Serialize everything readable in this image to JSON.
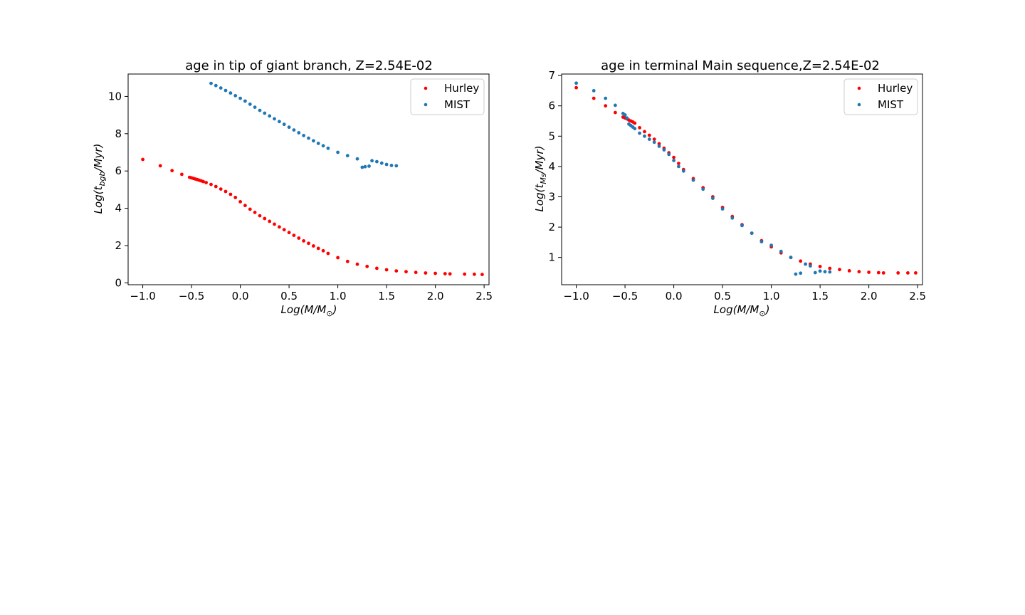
{
  "figure": {
    "background": "#ffffff"
  },
  "chart_data": [
    {
      "type": "scatter",
      "title": "age in tip of giant branch, Z=2.54E-02",
      "xlabel": {
        "main": "Log(M/M",
        "sub": "⊙",
        "close": ")"
      },
      "ylabel": {
        "main": "Log(t",
        "sub": "bgb",
        "rest": "/Myr)"
      },
      "xlim": [
        -1.15,
        2.55
      ],
      "ylim": [
        -0.1,
        11.2
      ],
      "xticks": [
        -1.0,
        -0.5,
        0.0,
        0.5,
        1.0,
        1.5,
        2.0,
        2.5
      ],
      "xtick_labels": [
        "−1.0",
        "−0.5",
        "0.0",
        "0.5",
        "1.0",
        "1.5",
        "2.0",
        "2.5"
      ],
      "yticks": [
        0,
        2,
        4,
        6,
        8,
        10
      ],
      "ytick_labels": [
        "0",
        "2",
        "4",
        "6",
        "8",
        "10"
      ],
      "legend": {
        "position": "top-right",
        "entries": [
          "Hurley",
          "MIST"
        ]
      },
      "series": [
        {
          "name": "Hurley",
          "color": "#ff0000",
          "points": [
            [
              -1.0,
              6.62
            ],
            [
              -0.82,
              6.28
            ],
            [
              -0.7,
              6.02
            ],
            [
              -0.6,
              5.82
            ],
            [
              -0.52,
              5.66
            ],
            [
              -0.5,
              5.63
            ],
            [
              -0.48,
              5.6
            ],
            [
              -0.46,
              5.57
            ],
            [
              -0.44,
              5.54
            ],
            [
              -0.42,
              5.5
            ],
            [
              -0.4,
              5.47
            ],
            [
              -0.38,
              5.43
            ],
            [
              -0.35,
              5.38
            ],
            [
              -0.3,
              5.28
            ],
            [
              -0.25,
              5.17
            ],
            [
              -0.2,
              5.03
            ],
            [
              -0.15,
              4.9
            ],
            [
              -0.1,
              4.75
            ],
            [
              -0.05,
              4.58
            ],
            [
              0.0,
              4.35
            ],
            [
              0.05,
              4.15
            ],
            [
              0.1,
              3.95
            ],
            [
              0.15,
              3.78
            ],
            [
              0.2,
              3.6
            ],
            [
              0.25,
              3.45
            ],
            [
              0.3,
              3.3
            ],
            [
              0.35,
              3.15
            ],
            [
              0.4,
              3.0
            ],
            [
              0.45,
              2.85
            ],
            [
              0.5,
              2.7
            ],
            [
              0.55,
              2.55
            ],
            [
              0.6,
              2.4
            ],
            [
              0.65,
              2.25
            ],
            [
              0.7,
              2.12
            ],
            [
              0.75,
              1.98
            ],
            [
              0.8,
              1.85
            ],
            [
              0.85,
              1.72
            ],
            [
              0.9,
              1.58
            ],
            [
              1.0,
              1.35
            ],
            [
              1.1,
              1.15
            ],
            [
              1.2,
              1.0
            ],
            [
              1.3,
              0.88
            ],
            [
              1.4,
              0.78
            ],
            [
              1.5,
              0.7
            ],
            [
              1.6,
              0.64
            ],
            [
              1.7,
              0.6
            ],
            [
              1.8,
              0.56
            ],
            [
              1.9,
              0.53
            ],
            [
              2.0,
              0.51
            ],
            [
              2.1,
              0.49
            ],
            [
              2.15,
              0.48
            ],
            [
              2.3,
              0.47
            ],
            [
              2.4,
              0.46
            ],
            [
              2.48,
              0.45
            ]
          ]
        },
        {
          "name": "MIST",
          "color": "#1f77b4",
          "points": [
            [
              -0.3,
              10.7
            ],
            [
              -0.25,
              10.58
            ],
            [
              -0.2,
              10.45
            ],
            [
              -0.15,
              10.32
            ],
            [
              -0.1,
              10.18
            ],
            [
              -0.05,
              10.04
            ],
            [
              0.0,
              9.9
            ],
            [
              0.05,
              9.75
            ],
            [
              0.1,
              9.58
            ],
            [
              0.15,
              9.42
            ],
            [
              0.2,
              9.25
            ],
            [
              0.25,
              9.1
            ],
            [
              0.3,
              8.95
            ],
            [
              0.35,
              8.8
            ],
            [
              0.4,
              8.65
            ],
            [
              0.45,
              8.5
            ],
            [
              0.5,
              8.35
            ],
            [
              0.55,
              8.2
            ],
            [
              0.6,
              8.05
            ],
            [
              0.65,
              7.9
            ],
            [
              0.7,
              7.76
            ],
            [
              0.75,
              7.62
            ],
            [
              0.8,
              7.48
            ],
            [
              0.85,
              7.35
            ],
            [
              0.9,
              7.22
            ],
            [
              1.0,
              7.0
            ],
            [
              1.1,
              6.82
            ],
            [
              1.2,
              6.65
            ],
            [
              1.25,
              6.2
            ],
            [
              1.28,
              6.23
            ],
            [
              1.32,
              6.26
            ],
            [
              1.35,
              6.55
            ],
            [
              1.4,
              6.5
            ],
            [
              1.45,
              6.42
            ],
            [
              1.5,
              6.35
            ],
            [
              1.55,
              6.3
            ],
            [
              1.6,
              6.28
            ]
          ]
        }
      ]
    },
    {
      "type": "scatter",
      "title": "age in terminal Main sequence,Z=2.54E-02",
      "xlabel": {
        "main": "Log(M/M",
        "sub": "⊙",
        "close": ")"
      },
      "ylabel": {
        "main": "Log(t",
        "sub": "Ms",
        "rest": "/Myr)"
      },
      "xlim": [
        -1.15,
        2.55
      ],
      "ylim": [
        0.1,
        7.05
      ],
      "xticks": [
        -1.0,
        -0.5,
        0.0,
        0.5,
        1.0,
        1.5,
        2.0,
        2.5
      ],
      "xtick_labels": [
        "−1.0",
        "−0.5",
        "0.0",
        "0.5",
        "1.0",
        "1.5",
        "2.0",
        "2.5"
      ],
      "yticks": [
        1,
        2,
        3,
        4,
        5,
        6,
        7
      ],
      "ytick_labels": [
        "1",
        "2",
        "3",
        "4",
        "5",
        "6",
        "7"
      ],
      "legend": {
        "position": "top-right",
        "entries": [
          "Hurley",
          "MIST"
        ]
      },
      "series": [
        {
          "name": "Hurley",
          "color": "#ff0000",
          "points": [
            [
              -1.0,
              6.6
            ],
            [
              -0.82,
              6.25
            ],
            [
              -0.7,
              6.0
            ],
            [
              -0.6,
              5.78
            ],
            [
              -0.52,
              5.63
            ],
            [
              -0.5,
              5.6
            ],
            [
              -0.48,
              5.57
            ],
            [
              -0.46,
              5.53
            ],
            [
              -0.44,
              5.5
            ],
            [
              -0.42,
              5.47
            ],
            [
              -0.4,
              5.43
            ],
            [
              -0.35,
              5.28
            ],
            [
              -0.3,
              5.15
            ],
            [
              -0.25,
              5.03
            ],
            [
              -0.2,
              4.9
            ],
            [
              -0.15,
              4.75
            ],
            [
              -0.1,
              4.6
            ],
            [
              -0.05,
              4.45
            ],
            [
              0.0,
              4.3
            ],
            [
              0.05,
              4.1
            ],
            [
              0.1,
              3.9
            ],
            [
              0.2,
              3.6
            ],
            [
              0.3,
              3.3
            ],
            [
              0.4,
              3.0
            ],
            [
              0.5,
              2.65
            ],
            [
              0.6,
              2.35
            ],
            [
              0.7,
              2.08
            ],
            [
              0.8,
              1.8
            ],
            [
              0.9,
              1.55
            ],
            [
              1.0,
              1.35
            ],
            [
              1.1,
              1.15
            ],
            [
              1.2,
              1.0
            ],
            [
              1.3,
              0.88
            ],
            [
              1.4,
              0.78
            ],
            [
              1.5,
              0.7
            ],
            [
              1.6,
              0.64
            ],
            [
              1.7,
              0.6
            ],
            [
              1.8,
              0.56
            ],
            [
              1.9,
              0.53
            ],
            [
              2.0,
              0.51
            ],
            [
              2.1,
              0.5
            ],
            [
              2.15,
              0.49
            ],
            [
              2.3,
              0.49
            ],
            [
              2.4,
              0.49
            ],
            [
              2.48,
              0.49
            ]
          ]
        },
        {
          "name": "MIST",
          "color": "#1f77b4",
          "points": [
            [
              -1.0,
              6.75
            ],
            [
              -0.82,
              6.5
            ],
            [
              -0.7,
              6.25
            ],
            [
              -0.6,
              6.02
            ],
            [
              -0.52,
              5.75
            ],
            [
              -0.5,
              5.7
            ],
            [
              -0.48,
              5.6
            ],
            [
              -0.46,
              5.4
            ],
            [
              -0.44,
              5.35
            ],
            [
              -0.42,
              5.3
            ],
            [
              -0.4,
              5.25
            ],
            [
              -0.35,
              5.1
            ],
            [
              -0.3,
              5.0
            ],
            [
              -0.25,
              4.9
            ],
            [
              -0.2,
              4.8
            ],
            [
              -0.15,
              4.67
            ],
            [
              -0.1,
              4.55
            ],
            [
              -0.05,
              4.4
            ],
            [
              0.0,
              4.2
            ],
            [
              0.05,
              4.0
            ],
            [
              0.1,
              3.85
            ],
            [
              0.2,
              3.55
            ],
            [
              0.3,
              3.25
            ],
            [
              0.4,
              2.95
            ],
            [
              0.5,
              2.6
            ],
            [
              0.6,
              2.3
            ],
            [
              0.7,
              2.05
            ],
            [
              0.8,
              1.8
            ],
            [
              0.9,
              1.52
            ],
            [
              1.0,
              1.4
            ],
            [
              1.1,
              1.2
            ],
            [
              1.2,
              1.0
            ],
            [
              1.25,
              0.45
            ],
            [
              1.3,
              0.48
            ],
            [
              1.35,
              0.78
            ],
            [
              1.4,
              0.72
            ],
            [
              1.45,
              0.5
            ],
            [
              1.5,
              0.55
            ],
            [
              1.55,
              0.53
            ],
            [
              1.6,
              0.52
            ]
          ]
        }
      ]
    }
  ]
}
